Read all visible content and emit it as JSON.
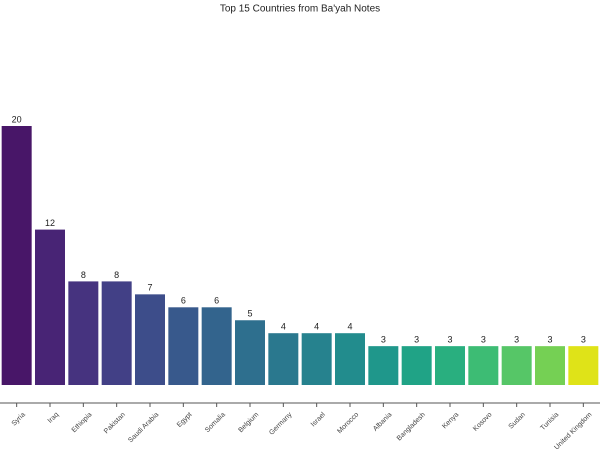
{
  "chart_data": {
    "type": "bar",
    "title": "Top 15 Countries from Ba'yah Notes",
    "categories": [
      "Syria",
      "Iraq",
      "Ethiopia",
      "Pakistan",
      "Saudi Arabia",
      "Egypt",
      "Somalia",
      "Belgium",
      "Germany",
      "Israel",
      "Morocco",
      "Albania",
      "Bangladesh",
      "Kenya",
      "Kosovo",
      "Sudan",
      "Tunisia",
      "United Kingdom"
    ],
    "values": [
      20,
      12,
      8,
      8,
      7,
      6,
      6,
      5,
      4,
      4,
      4,
      3,
      3,
      3,
      3,
      3,
      3,
      3
    ],
    "colors": [
      "#481668",
      "#482475",
      "#46337f",
      "#424086",
      "#3d4d8a",
      "#38598c",
      "#33648d",
      "#2e6f8e",
      "#2a788e",
      "#26828e",
      "#228c8d",
      "#1f978b",
      "#20a386",
      "#29af7f",
      "#3dbc74",
      "#56c667",
      "#75d054",
      "#dfe318"
    ],
    "ylim": [
      0,
      20
    ]
  }
}
